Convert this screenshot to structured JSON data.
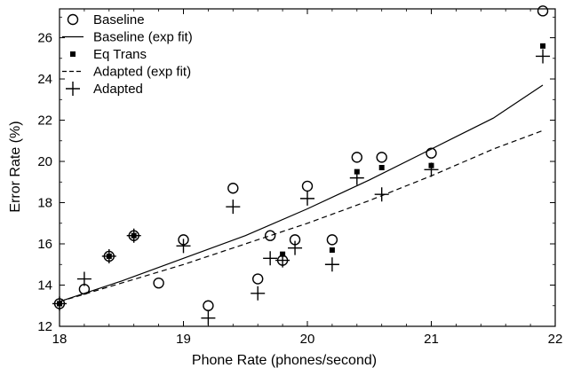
{
  "chart_data": {
    "type": "scatter",
    "xlabel": "Phone Rate (phones/second)",
    "ylabel": "Error Rate (%)",
    "xlim": [
      18,
      22
    ],
    "ylim": [
      12,
      27.4
    ],
    "xticks": [
      18,
      19,
      20,
      21,
      22
    ],
    "yticks": [
      12,
      14,
      16,
      18,
      20,
      22,
      24,
      26
    ],
    "xtick_labels": [
      "18",
      "19",
      "20",
      "21",
      "22"
    ],
    "ytick_labels": [
      "12",
      "14",
      "16",
      "18",
      "20",
      "22",
      "24",
      "26"
    ],
    "grid": false,
    "legend_position": "top-left",
    "legend": [
      {
        "label": "Baseline",
        "marker": "circle"
      },
      {
        "label": "Baseline (exp fit)",
        "line": "solid"
      },
      {
        "label": "Eq Trans",
        "marker": "square"
      },
      {
        "label": "Adapted (exp fit)",
        "line": "dashed"
      },
      {
        "label": "Adapted",
        "marker": "plus"
      }
    ],
    "series": [
      {
        "name": "Baseline",
        "marker": "circle",
        "x": [
          18.0,
          18.2,
          18.4,
          18.6,
          18.8,
          19.0,
          19.2,
          19.4,
          19.6,
          19.7,
          19.8,
          19.9,
          20.0,
          20.2,
          20.4,
          20.6,
          21.0,
          21.9
        ],
        "y": [
          13.1,
          13.8,
          15.4,
          16.4,
          14.1,
          16.2,
          13.0,
          18.7,
          14.3,
          16.4,
          15.2,
          16.2,
          18.8,
          16.2,
          20.2,
          20.2,
          20.4,
          27.3
        ]
      },
      {
        "name": "Eq Trans",
        "marker": "square",
        "x": [
          18.0,
          18.4,
          18.6,
          19.8,
          20.2,
          20.4,
          20.6,
          21.0,
          21.9
        ],
        "y": [
          13.1,
          15.4,
          16.4,
          15.5,
          15.7,
          19.5,
          19.7,
          19.8,
          25.6
        ]
      },
      {
        "name": "Adapted",
        "marker": "plus",
        "x": [
          18.0,
          18.2,
          18.4,
          18.6,
          19.0,
          19.2,
          19.4,
          19.6,
          19.7,
          19.8,
          19.9,
          20.0,
          20.2,
          20.4,
          20.6,
          21.0,
          21.9
        ],
        "y": [
          13.1,
          14.3,
          15.4,
          16.4,
          15.9,
          12.4,
          17.8,
          13.6,
          15.3,
          15.2,
          15.8,
          18.2,
          15.0,
          19.2,
          18.4,
          19.6,
          25.1
        ]
      },
      {
        "name": "Baseline (exp fit)",
        "line": "solid",
        "x": [
          18.0,
          18.5,
          19.0,
          19.5,
          20.0,
          20.5,
          21.0,
          21.5,
          21.9
        ],
        "y": [
          13.2,
          14.2,
          15.3,
          16.4,
          17.7,
          19.1,
          20.6,
          22.1,
          23.7
        ]
      },
      {
        "name": "Adapted (exp fit)",
        "line": "dashed",
        "x": [
          18.0,
          18.5,
          19.0,
          19.5,
          20.0,
          20.5,
          21.0,
          21.5,
          21.9
        ],
        "y": [
          13.2,
          14.1,
          15.0,
          16.0,
          17.0,
          18.1,
          19.3,
          20.6,
          21.5
        ]
      }
    ]
  }
}
